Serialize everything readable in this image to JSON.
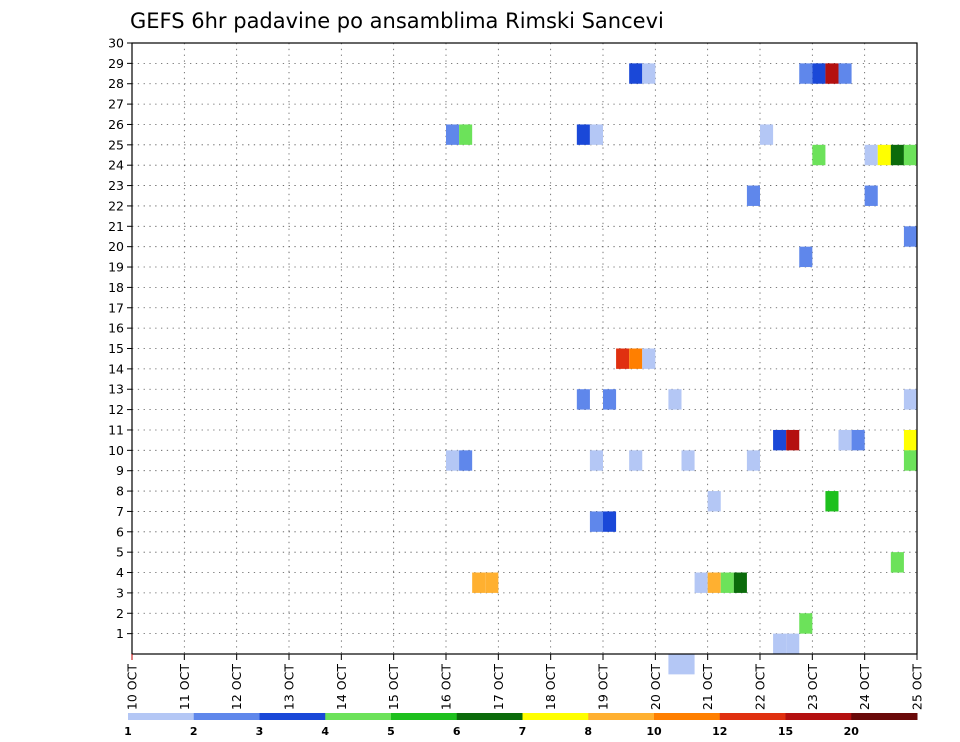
{
  "chart_data": {
    "type": "heatmap",
    "title": "GEFS 6hr padavine po ansamblima Rimski Sancevi",
    "x_tick_labels": [
      "10 OCT",
      "11 OCT",
      "12 OCT",
      "13 OCT",
      "14 OCT",
      "15 OCT",
      "16 OCT",
      "17 OCT",
      "18 OCT",
      "19 OCT",
      "20 OCT",
      "21 OCT",
      "22 OCT",
      "23 OCT",
      "24 OCT",
      "25 OCT"
    ],
    "y_tick_labels": [
      "1",
      "2",
      "3",
      "4",
      "5",
      "6",
      "7",
      "8",
      "9",
      "10",
      "11",
      "12",
      "13",
      "14",
      "15",
      "16",
      "17",
      "18",
      "19",
      "20",
      "21",
      "22",
      "23",
      "24",
      "25",
      "26",
      "27",
      "28",
      "29",
      "30"
    ],
    "xlim": [
      0,
      15
    ],
    "ylim": [
      0,
      30
    ],
    "grid": true,
    "colorbar": {
      "colors": [
        "#b4c7f5",
        "#5f87eb",
        "#1a48d8",
        "#6ce25a",
        "#1ec01e",
        "#0b6b0b",
        "#ffff00",
        "#ffb030",
        "#ff7f00",
        "#e03010",
        "#b41010",
        "#6a0a0a"
      ],
      "labels": [
        "1",
        "2",
        "3",
        "4",
        "5",
        "6",
        "7",
        "8",
        "10",
        "12",
        "15",
        "20"
      ]
    },
    "cells": [
      {
        "x": 6.0,
        "member": 27,
        "color": "#5f87eb"
      },
      {
        "x": 6.25,
        "member": 27,
        "color": "#6ce25a"
      },
      {
        "x": 8.5,
        "member": 27,
        "color": "#1a48d8"
      },
      {
        "x": 8.75,
        "member": 27,
        "color": "#b4c7f5"
      },
      {
        "x": 12.0,
        "member": 27,
        "color": "#b4c7f5"
      },
      {
        "x": 9.5,
        "member": 30,
        "color": "#1a48d8"
      },
      {
        "x": 9.75,
        "member": 30,
        "color": "#b4c7f5"
      },
      {
        "x": 12.75,
        "member": 30,
        "color": "#5f87eb"
      },
      {
        "x": 13.0,
        "member": 30,
        "color": "#1a48d8"
      },
      {
        "x": 13.25,
        "member": 30,
        "color": "#b41010"
      },
      {
        "x": 13.5,
        "member": 30,
        "color": "#5f87eb"
      },
      {
        "x": 13.0,
        "member": 26,
        "color": "#6ce25a"
      },
      {
        "x": 14.0,
        "member": 26,
        "color": "#b4c7f5"
      },
      {
        "x": 14.25,
        "member": 26,
        "color": "#ffff00"
      },
      {
        "x": 14.5,
        "member": 26,
        "color": "#0b6b0b"
      },
      {
        "x": 14.75,
        "member": 26,
        "color": "#6ce25a"
      },
      {
        "x": 11.75,
        "member": 24,
        "color": "#5f87eb"
      },
      {
        "x": 14.0,
        "member": 24,
        "color": "#5f87eb"
      },
      {
        "x": 14.75,
        "member": 22,
        "color": "#5f87eb"
      },
      {
        "x": 12.75,
        "member": 21,
        "color": "#5f87eb"
      },
      {
        "x": 9.25,
        "member": 16,
        "color": "#e03010"
      },
      {
        "x": 9.5,
        "member": 16,
        "color": "#ff7f00"
      },
      {
        "x": 9.75,
        "member": 16,
        "color": "#b4c7f5"
      },
      {
        "x": 8.5,
        "member": 14,
        "color": "#5f87eb"
      },
      {
        "x": 9.0,
        "member": 14,
        "color": "#5f87eb"
      },
      {
        "x": 10.25,
        "member": 14,
        "color": "#b4c7f5"
      },
      {
        "x": 14.75,
        "member": 14,
        "color": "#b4c7f5"
      },
      {
        "x": 12.25,
        "member": 12,
        "color": "#1a48d8"
      },
      {
        "x": 12.5,
        "member": 12,
        "color": "#b41010"
      },
      {
        "x": 13.5,
        "member": 12,
        "color": "#b4c7f5"
      },
      {
        "x": 13.75,
        "member": 12,
        "color": "#5f87eb"
      },
      {
        "x": 14.75,
        "member": 12,
        "color": "#ffff00"
      },
      {
        "x": 6.0,
        "member": 11,
        "color": "#b4c7f5"
      },
      {
        "x": 6.25,
        "member": 11,
        "color": "#5f87eb"
      },
      {
        "x": 8.75,
        "member": 11,
        "color": "#b4c7f5"
      },
      {
        "x": 9.5,
        "member": 11,
        "color": "#b4c7f5"
      },
      {
        "x": 10.5,
        "member": 11,
        "color": "#b4c7f5"
      },
      {
        "x": 11.75,
        "member": 11,
        "color": "#b4c7f5"
      },
      {
        "x": 14.75,
        "member": 11,
        "color": "#6ce25a"
      },
      {
        "x": 11.0,
        "member": 9,
        "color": "#b4c7f5"
      },
      {
        "x": 13.25,
        "member": 9,
        "color": "#1ec01e"
      },
      {
        "x": 8.75,
        "member": 8,
        "color": "#5f87eb"
      },
      {
        "x": 9.0,
        "member": 8,
        "color": "#1a48d8"
      },
      {
        "x": 14.5,
        "member": 6,
        "color": "#6ce25a"
      },
      {
        "x": 6.5,
        "member": 5,
        "color": "#ffb030"
      },
      {
        "x": 6.75,
        "member": 5,
        "color": "#ffb030"
      },
      {
        "x": 10.75,
        "member": 5,
        "color": "#b4c7f5"
      },
      {
        "x": 11.0,
        "member": 5,
        "color": "#ffb030"
      },
      {
        "x": 11.25,
        "member": 5,
        "color": "#6ce25a"
      },
      {
        "x": 11.5,
        "member": 5,
        "color": "#0b6b0b"
      },
      {
        "x": 12.75,
        "member": 3,
        "color": "#6ce25a"
      },
      {
        "x": 12.25,
        "member": 2,
        "color": "#b4c7f5"
      },
      {
        "x": 12.5,
        "member": 2,
        "color": "#b4c7f5"
      },
      {
        "x": 10.25,
        "member": 1,
        "color": "#b4c7f5"
      },
      {
        "x": 10.5,
        "member": 1,
        "color": "#b4c7f5"
      }
    ]
  }
}
